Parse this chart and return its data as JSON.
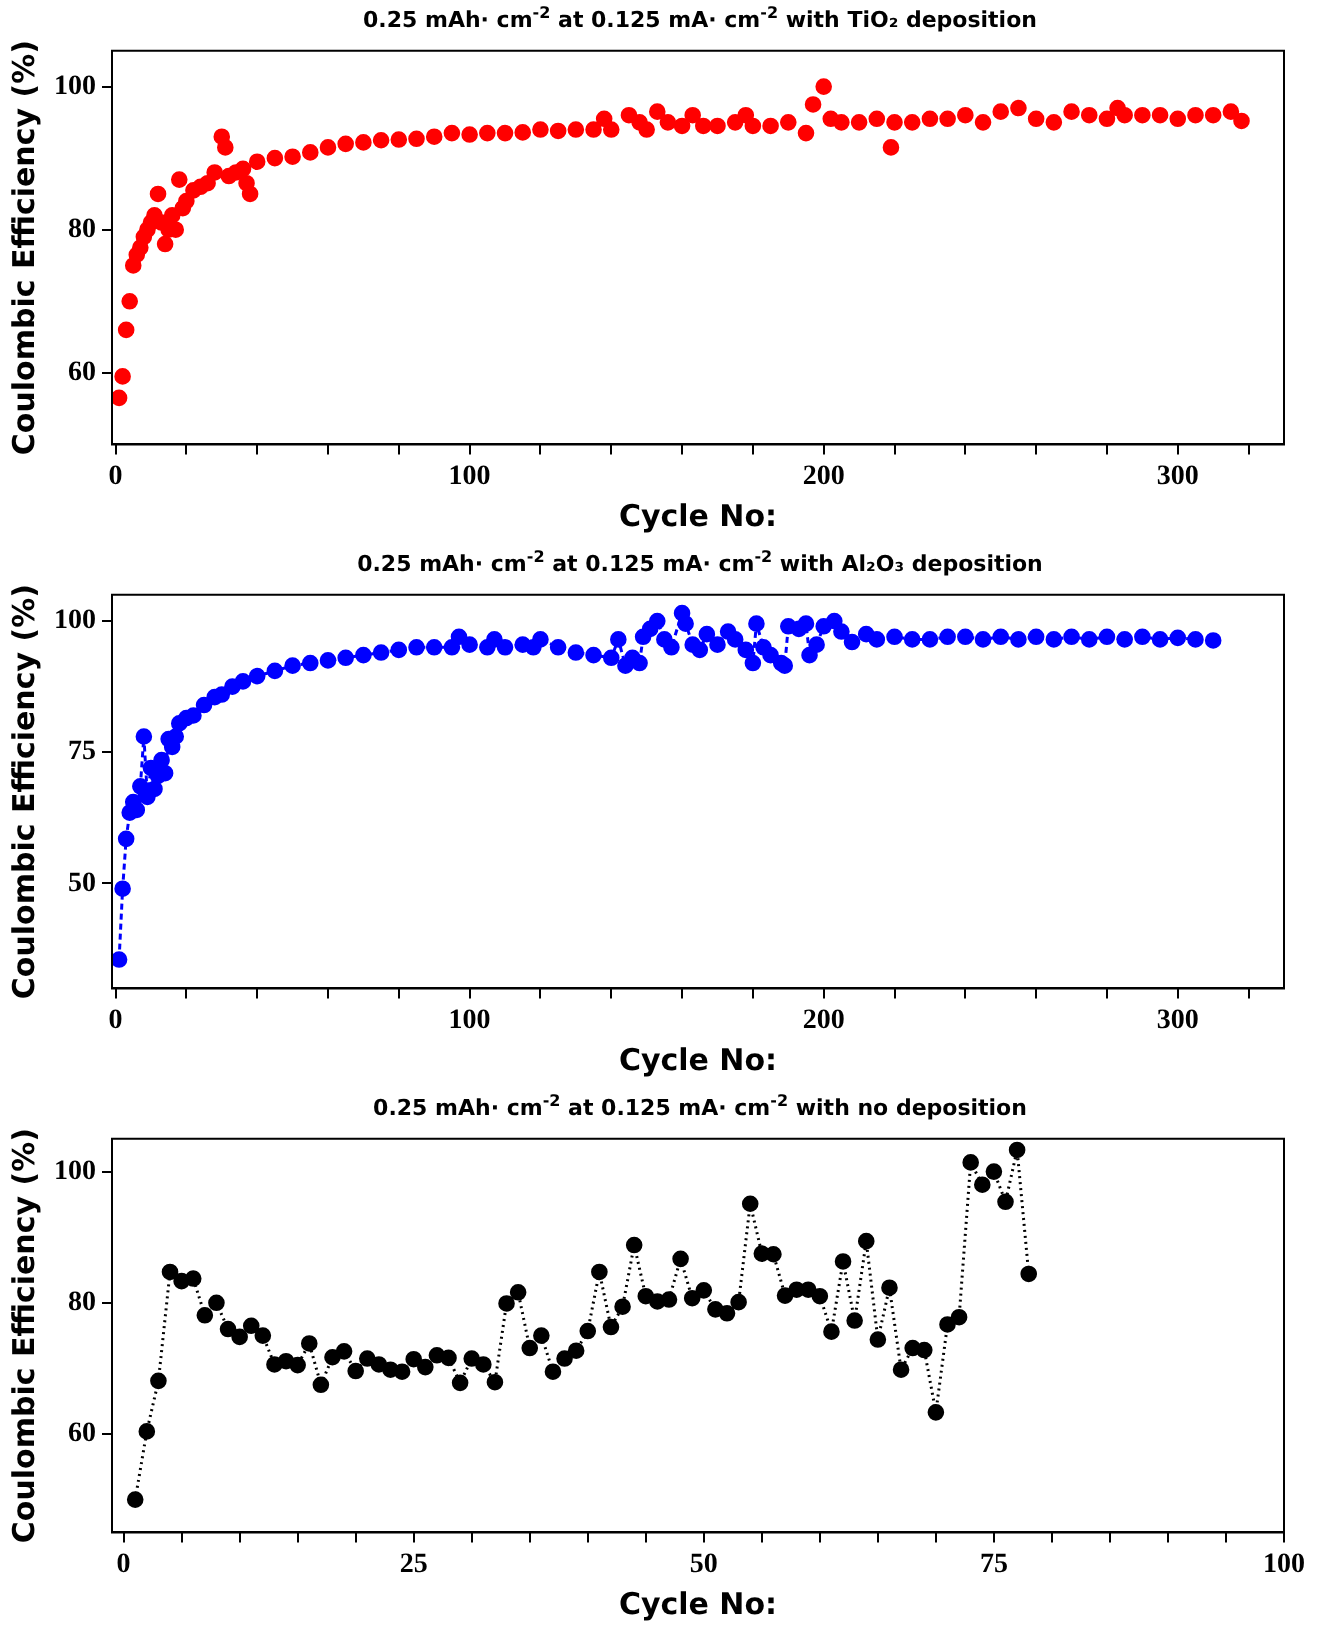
{
  "chart_data": [
    {
      "type": "scatter",
      "title": "0.25 mAh· cm$^{-2}$ at 0.125 mA· cm$^{-2}$ with TiO₂ deposition",
      "xlabel": "Cycle No:",
      "ylabel": "Coulombic Efficiency (%)",
      "marker": "circle",
      "grid": false,
      "legend": false,
      "xlim": [
        -1,
        330
      ],
      "xticks": [
        0,
        {
          "value": 20,
          "label": null
        },
        {
          "value": 40,
          "label": null
        },
        {
          "value": 60,
          "label": null
        },
        {
          "value": 80,
          "label": null
        },
        100,
        {
          "value": 120,
          "label": null
        },
        {
          "value": 140,
          "label": null
        },
        {
          "value": 160,
          "label": null
        },
        {
          "value": 180,
          "label": null
        },
        200,
        {
          "value": 220,
          "label": null
        },
        {
          "value": 240,
          "label": null
        },
        {
          "value": 260,
          "label": null
        },
        {
          "value": 280,
          "label": null
        },
        300,
        {
          "value": 320,
          "label": null
        }
      ],
      "ylim": [
        50,
        105
      ],
      "yticks": [
        60,
        80,
        100
      ],
      "series": [
        {
          "color": "#ff0000",
          "x": [
            1,
            2,
            3,
            4,
            5,
            6,
            7,
            8,
            9,
            10,
            11,
            12,
            13,
            14,
            15,
            16,
            17,
            18,
            19,
            20,
            22,
            24,
            26,
            28,
            30,
            31,
            32,
            34,
            36,
            37,
            38,
            40,
            45,
            50,
            55,
            60,
            65,
            70,
            75,
            80,
            85,
            90,
            95,
            100,
            105,
            110,
            115,
            120,
            125,
            130,
            135,
            138,
            140,
            145,
            148,
            150,
            153,
            156,
            160,
            163,
            166,
            170,
            175,
            178,
            180,
            185,
            190,
            195,
            197,
            200,
            202,
            205,
            210,
            215,
            219,
            220,
            225,
            230,
            235,
            240,
            245,
            250,
            255,
            260,
            265,
            270,
            275,
            280,
            283,
            285,
            290,
            295,
            300,
            305,
            310,
            315,
            318
          ],
          "values": [
            56.5,
            59.5,
            66,
            70,
            75,
            76.5,
            77.5,
            79,
            80,
            81,
            82,
            85,
            81,
            78,
            80,
            82,
            80,
            87,
            83,
            84,
            85.5,
            86,
            86.5,
            88,
            93,
            91.5,
            87.5,
            88,
            88.5,
            86.5,
            85,
            89.5,
            90,
            90.2,
            90.8,
            91.5,
            92,
            92.2,
            92.5,
            92.6,
            92.7,
            93,
            93.5,
            93.3,
            93.5,
            93.5,
            93.6,
            94,
            93.8,
            94,
            94,
            95.5,
            94,
            96,
            95,
            94,
            96.5,
            95,
            94.5,
            96,
            94.5,
            94.5,
            95,
            96,
            94.5,
            94.5,
            95,
            93.5,
            97.5,
            100,
            95.5,
            95,
            95,
            95.5,
            91.5,
            95,
            95,
            95.5,
            95.5,
            96,
            95,
            96.5,
            97,
            95.5,
            95,
            96.5,
            96,
            95.5,
            97,
            96,
            96,
            96,
            95.5,
            96,
            96,
            96.5,
            95.2
          ]
        }
      ]
    },
    {
      "type": "line",
      "title": "0.25 mAh· cm$^{-2}$ at 0.125 mA· cm$^{-2}$ with Al₂O₃ deposition",
      "xlabel": "Cycle No:",
      "ylabel": "Coulombic Efficiency (%)",
      "marker": "circle",
      "line_style": "dashed",
      "grid": false,
      "legend": false,
      "xlim": [
        -1,
        330
      ],
      "xticks": [
        0,
        {
          "value": 20,
          "label": null
        },
        {
          "value": 40,
          "label": null
        },
        {
          "value": 60,
          "label": null
        },
        {
          "value": 80,
          "label": null
        },
        100,
        {
          "value": 120,
          "label": null
        },
        {
          "value": 140,
          "label": null
        },
        {
          "value": 160,
          "label": null
        },
        {
          "value": 180,
          "label": null
        },
        200,
        {
          "value": 220,
          "label": null
        },
        {
          "value": 240,
          "label": null
        },
        {
          "value": 260,
          "label": null
        },
        {
          "value": 280,
          "label": null
        },
        300,
        {
          "value": 320,
          "label": null
        }
      ],
      "ylim": [
        30,
        105
      ],
      "yticks": [
        50,
        75,
        100
      ],
      "series": [
        {
          "color": "#0000ff",
          "x": [
            1,
            2,
            3,
            4,
            5,
            6,
            7,
            8,
            9,
            10,
            11,
            12,
            13,
            14,
            15,
            16,
            17,
            18,
            20,
            22,
            25,
            28,
            30,
            33,
            36,
            40,
            45,
            50,
            55,
            60,
            65,
            70,
            75,
            80,
            85,
            90,
            95,
            97,
            100,
            105,
            107,
            110,
            115,
            118,
            120,
            125,
            130,
            135,
            140,
            142,
            144,
            146,
            148,
            149,
            151,
            153,
            155,
            157,
            160,
            161,
            163,
            165,
            167,
            170,
            173,
            175,
            178,
            180,
            181,
            183,
            185,
            188,
            189,
            190,
            193,
            195,
            196,
            198,
            200,
            203,
            205,
            208,
            212,
            215,
            220,
            225,
            230,
            235,
            240,
            245,
            250,
            255,
            260,
            265,
            270,
            275,
            280,
            285,
            290,
            295,
            300,
            305,
            310
          ],
          "values": [
            35.5,
            49,
            58.5,
            63.5,
            65.5,
            64,
            68.5,
            78,
            66.5,
            72,
            68,
            70.5,
            73.5,
            71,
            77.5,
            76,
            78,
            80.5,
            81.5,
            82,
            84,
            85.5,
            86,
            87.5,
            88.5,
            89.5,
            90.5,
            91.5,
            92,
            92.5,
            93,
            93.5,
            94,
            94.5,
            95,
            95,
            95,
            97,
            95.5,
            95,
            96.5,
            95,
            95.5,
            95,
            96.5,
            95,
            94,
            93.5,
            93,
            96.5,
            91.5,
            93,
            92,
            97,
            98.5,
            100,
            96.5,
            95,
            101.5,
            99.5,
            95.5,
            94.5,
            97.5,
            95.5,
            98,
            96.5,
            94.5,
            92,
            99.5,
            95,
            93.5,
            92,
            91.5,
            99,
            98.5,
            99.5,
            93.5,
            95.5,
            99,
            100,
            98,
            96,
            97.5,
            96.5,
            97,
            96.5,
            96.5,
            97,
            97,
            96.5,
            97,
            96.5,
            97,
            96.5,
            97,
            96.5,
            97,
            96.5,
            97,
            96.5,
            96.8,
            96.5,
            96.3
          ]
        }
      ]
    },
    {
      "type": "line",
      "title": "0.25 mAh· cm$^{-2}$ at 0.125 mA· cm$^{-2}$ with no deposition",
      "xlabel": "Cycle No:",
      "ylabel": "Coulombic Efficiency (%)",
      "marker": "circle",
      "line_style": "dotted",
      "grid": false,
      "legend": false,
      "xlim": [
        -1,
        100
      ],
      "xticks": [
        0,
        {
          "value": 5,
          "label": null
        },
        {
          "value": 10,
          "label": null
        },
        {
          "value": 15,
          "label": null
        },
        {
          "value": 20,
          "label": null
        },
        25,
        {
          "value": 30,
          "label": null
        },
        {
          "value": 35,
          "label": null
        },
        {
          "value": 40,
          "label": null
        },
        {
          "value": 45,
          "label": null
        },
        50,
        {
          "value": 55,
          "label": null
        },
        {
          "value": 60,
          "label": null
        },
        {
          "value": 65,
          "label": null
        },
        {
          "value": 70,
          "label": null
        },
        75,
        {
          "value": 80,
          "label": null
        },
        {
          "value": 85,
          "label": null
        },
        {
          "value": 90,
          "label": null
        },
        {
          "value": 95,
          "label": null
        },
        100
      ],
      "ylim": [
        45,
        105
      ],
      "yticks": [
        60,
        80,
        100
      ],
      "series": [
        {
          "color": "#000000",
          "x": [
            1,
            2,
            3,
            4,
            5,
            6,
            7,
            8,
            9,
            10,
            11,
            12,
            13,
            14,
            15,
            16,
            17,
            18,
            19,
            20,
            21,
            22,
            23,
            24,
            25,
            26,
            27,
            28,
            29,
            30,
            31,
            32,
            33,
            34,
            35,
            36,
            37,
            38,
            39,
            40,
            41,
            42,
            43,
            44,
            45,
            46,
            47,
            48,
            49,
            50,
            51,
            52,
            53,
            54,
            55,
            56,
            57,
            58,
            59,
            60,
            61,
            62,
            63,
            64,
            65,
            66,
            67,
            68,
            69,
            70,
            71,
            72,
            73,
            74,
            75,
            76,
            77,
            78
          ],
          "values": [
            50,
            60.4,
            68.1,
            84.7,
            83.3,
            83.7,
            78.1,
            80,
            76,
            74.8,
            76.5,
            75,
            70.6,
            71.1,
            70.5,
            73.8,
            67.5,
            71.7,
            72.6,
            69.6,
            71.5,
            70.6,
            69.8,
            69.5,
            71.4,
            70.2,
            72,
            71.6,
            67.8,
            71.5,
            70.6,
            67.9,
            79.9,
            81.6,
            73.1,
            75,
            69.5,
            71.5,
            72.7,
            75.7,
            84.7,
            76.3,
            79.4,
            88.8,
            81,
            80.2,
            80.5,
            86.7,
            80.7,
            81.9,
            79,
            78.4,
            80.1,
            95.1,
            87.5,
            87.4,
            81.1,
            82,
            82,
            81,
            75.6,
            86.3,
            77.3,
            89.4,
            74.4,
            82.3,
            69.8,
            73.1,
            72.8,
            63.3,
            76.7,
            77.8,
            101.4,
            98,
            100,
            95.4,
            103.3,
            84.4
          ]
        }
      ]
    }
  ]
}
